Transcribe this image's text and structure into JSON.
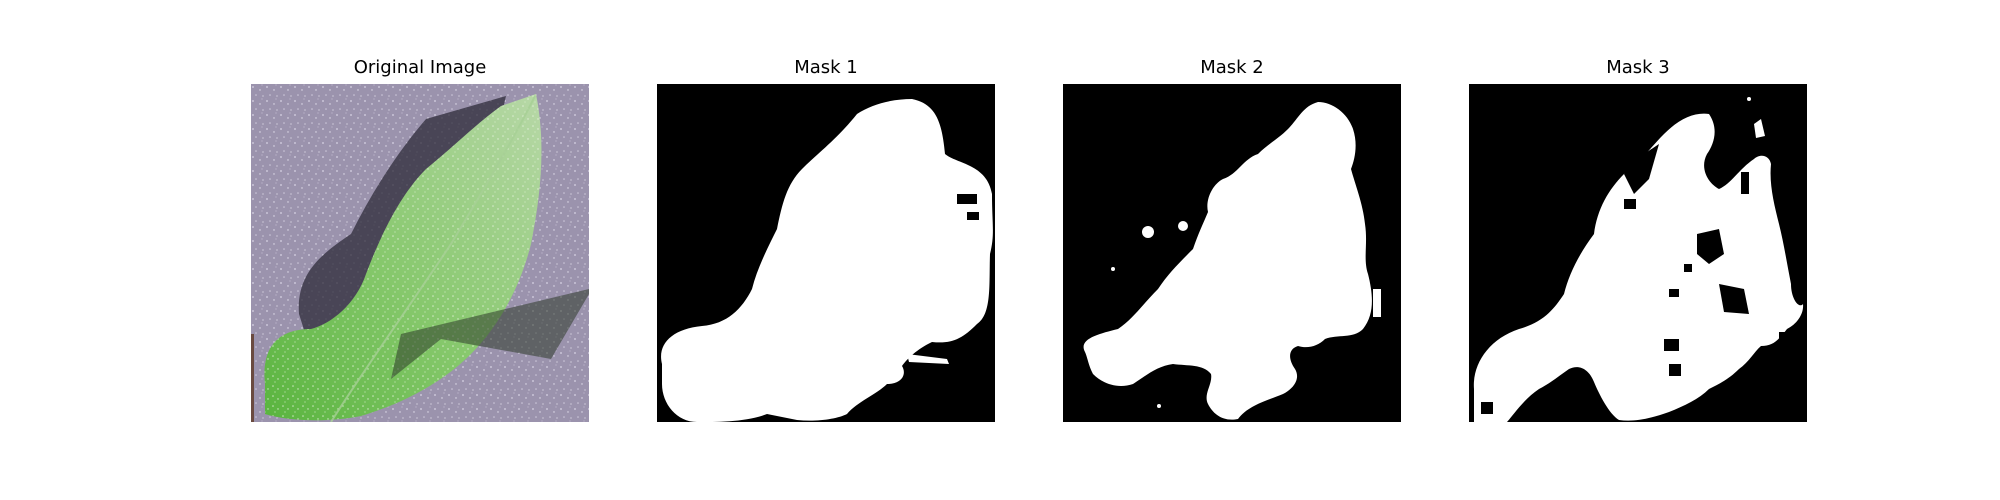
{
  "figure": {
    "panels": [
      {
        "title": "Original Image",
        "content": "leaf-photo"
      },
      {
        "title": "Mask 1",
        "content": "binary-mask"
      },
      {
        "title": "Mask 2",
        "content": "binary-mask"
      },
      {
        "title": "Mask 3",
        "content": "binary-mask"
      }
    ],
    "colors": {
      "mask_foreground": "#ffffff",
      "mask_background": "#000000",
      "leaf_green": "#7fc96a",
      "background_gray": "#9a93ab"
    }
  }
}
